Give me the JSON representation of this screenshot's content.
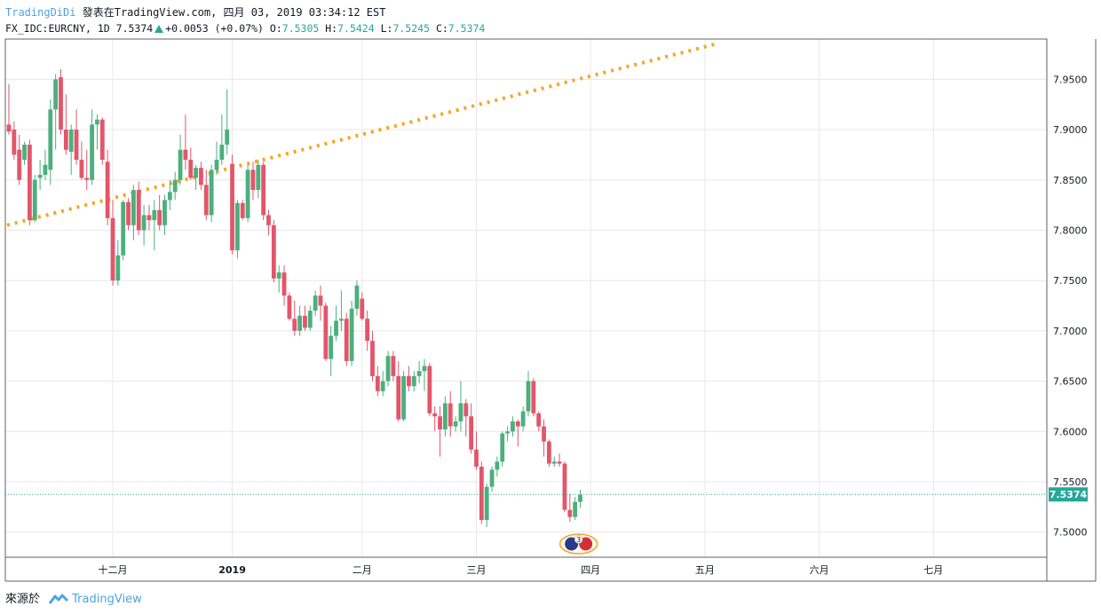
{
  "header": {
    "author": "TradingDiDi",
    "published": "發表在TradingView.com, 四月 03, 2019 03:34:12 EST"
  },
  "ticker": {
    "symbol": "FX_IDC:EURCNY, 1D",
    "last": "7.5374",
    "change": "+0.0053 (+0.07%)",
    "o_label": "O:",
    "o_value": "7.5305",
    "h_label": "H:",
    "h_value": "7.5424",
    "l_label": "L:",
    "l_value": "7.5245",
    "c_label": "C:",
    "c_value": "7.5374"
  },
  "footer": {
    "source_label": "來源於",
    "brand": "TradingView"
  },
  "colors": {
    "up": "#4caf7d",
    "down": "#e2566a",
    "trendline": "#f5a623",
    "grid": "#e8e8e8",
    "price_label_bg": "#26a69a",
    "author": "#4fa3e0"
  },
  "icons": [
    "trendline",
    "earnings-marker-icon",
    "tradingview-logo-icon",
    "up-triangle-icon"
  ],
  "chart_data": {
    "type": "candlestick",
    "title": "",
    "xlabel": "",
    "ylabel": "",
    "ylim": [
      7.475,
      7.99
    ],
    "grid": true,
    "y_ticks": [
      "7.5000",
      "7.5500",
      "7.6000",
      "7.6500",
      "7.7000",
      "7.7500",
      "7.8000",
      "7.8500",
      "7.9000",
      "7.9500"
    ],
    "x_ticks": [
      "十二月",
      "2019",
      "二月",
      "三月",
      "四月",
      "五月",
      "六月",
      "七月"
    ],
    "last_price_label": "7.5374",
    "event_marker_label": "3",
    "trendline": {
      "start": 7.805,
      "end": 7.985
    },
    "candles": [
      [
        7.905,
        7.945,
        7.895,
        7.898
      ],
      [
        7.9,
        7.908,
        7.87,
        7.875
      ],
      [
        7.88,
        7.895,
        7.845,
        7.85
      ],
      [
        7.87,
        7.888,
        7.865,
        7.885
      ],
      [
        7.885,
        7.89,
        7.805,
        7.81
      ],
      [
        7.81,
        7.855,
        7.808,
        7.85
      ],
      [
        7.852,
        7.87,
        7.84,
        7.855
      ],
      [
        7.855,
        7.88,
        7.85,
        7.865
      ],
      [
        7.86,
        7.93,
        7.845,
        7.92
      ],
      [
        7.92,
        7.955,
        7.88,
        7.95
      ],
      [
        7.952,
        7.96,
        7.895,
        7.9
      ],
      [
        7.9,
        7.935,
        7.875,
        7.88
      ],
      [
        7.878,
        7.905,
        7.855,
        7.9
      ],
      [
        7.9,
        7.92,
        7.865,
        7.87
      ],
      [
        7.87,
        7.888,
        7.85,
        7.852
      ],
      [
        7.852,
        7.88,
        7.84,
        7.85
      ],
      [
        7.85,
        7.92,
        7.845,
        7.905
      ],
      [
        7.905,
        7.915,
        7.88,
        7.91
      ],
      [
        7.91,
        7.912,
        7.865,
        7.87
      ],
      [
        7.868,
        7.88,
        7.805,
        7.812
      ],
      [
        7.812,
        7.83,
        7.745,
        7.75
      ],
      [
        7.75,
        7.79,
        7.745,
        7.775
      ],
      [
        7.775,
        7.83,
        7.77,
        7.828
      ],
      [
        7.828,
        7.832,
        7.8,
        7.805
      ],
      [
        7.805,
        7.845,
        7.79,
        7.84
      ],
      [
        7.84,
        7.848,
        7.795,
        7.8
      ],
      [
        7.8,
        7.825,
        7.785,
        7.815
      ],
      [
        7.815,
        7.825,
        7.8,
        7.81
      ],
      [
        7.81,
        7.83,
        7.78,
        7.82
      ],
      [
        7.82,
        7.835,
        7.8,
        7.805
      ],
      [
        7.805,
        7.835,
        7.795,
        7.83
      ],
      [
        7.83,
        7.85,
        7.82,
        7.838
      ],
      [
        7.838,
        7.858,
        7.83,
        7.85
      ],
      [
        7.85,
        7.895,
        7.845,
        7.88
      ],
      [
        7.88,
        7.915,
        7.86,
        7.87
      ],
      [
        7.87,
        7.882,
        7.85,
        7.852
      ],
      [
        7.852,
        7.865,
        7.84,
        7.862
      ],
      [
        7.862,
        7.868,
        7.84,
        7.845
      ],
      [
        7.845,
        7.86,
        7.81,
        7.815
      ],
      [
        7.815,
        7.865,
        7.808,
        7.86
      ],
      [
        7.86,
        7.888,
        7.855,
        7.87
      ],
      [
        7.87,
        7.915,
        7.865,
        7.885
      ],
      [
        7.885,
        7.94,
        7.875,
        7.9
      ],
      [
        7.866,
        7.875,
        7.776,
        7.78
      ],
      [
        7.78,
        7.83,
        7.772,
        7.827
      ],
      [
        7.827,
        7.83,
        7.81,
        7.812
      ],
      [
        7.812,
        7.865,
        7.808,
        7.86
      ],
      [
        7.86,
        7.868,
        7.83,
        7.84
      ],
      [
        7.84,
        7.87,
        7.832,
        7.865
      ],
      [
        7.865,
        7.868,
        7.81,
        7.815
      ],
      [
        7.815,
        7.82,
        7.795,
        7.805
      ],
      [
        7.805,
        7.81,
        7.748,
        7.752
      ],
      [
        7.752,
        7.765,
        7.738,
        7.758
      ],
      [
        7.758,
        7.765,
        7.725,
        7.735
      ],
      [
        7.735,
        7.738,
        7.71,
        7.712
      ],
      [
        7.712,
        7.73,
        7.695,
        7.7
      ],
      [
        7.7,
        7.725,
        7.695,
        7.715
      ],
      [
        7.715,
        7.725,
        7.7,
        7.703
      ],
      [
        7.703,
        7.725,
        7.7,
        7.72
      ],
      [
        7.72,
        7.74,
        7.715,
        7.735
      ],
      [
        7.735,
        7.745,
        7.71,
        7.725
      ],
      [
        7.725,
        7.728,
        7.67,
        7.672
      ],
      [
        7.672,
        7.705,
        7.655,
        7.695
      ],
      [
        7.695,
        7.725,
        7.69,
        7.71
      ],
      [
        7.71,
        7.74,
        7.7,
        7.712
      ],
      [
        7.712,
        7.718,
        7.665,
        7.67
      ],
      [
        7.67,
        7.73,
        7.665,
        7.722
      ],
      [
        7.722,
        7.75,
        7.715,
        7.745
      ],
      [
        7.732,
        7.738,
        7.71,
        7.712
      ],
      [
        7.712,
        7.72,
        7.68,
        7.69
      ],
      [
        7.69,
        7.7,
        7.65,
        7.655
      ],
      [
        7.655,
        7.665,
        7.635,
        7.64
      ],
      [
        7.64,
        7.66,
        7.635,
        7.65
      ],
      [
        7.65,
        7.68,
        7.645,
        7.675
      ],
      [
        7.675,
        7.68,
        7.65,
        7.655
      ],
      [
        7.655,
        7.67,
        7.61,
        7.612
      ],
      [
        7.612,
        7.66,
        7.61,
        7.655
      ],
      [
        7.655,
        7.665,
        7.64,
        7.645
      ],
      [
        7.645,
        7.66,
        7.64,
        7.655
      ],
      [
        7.655,
        7.67,
        7.648,
        7.66
      ],
      [
        7.66,
        7.672,
        7.64,
        7.665
      ],
      [
        7.665,
        7.668,
        7.615,
        7.618
      ],
      [
        7.618,
        7.625,
        7.6,
        7.615
      ],
      [
        7.615,
        7.625,
        7.575,
        7.602
      ],
      [
        7.602,
        7.635,
        7.595,
        7.628
      ],
      [
        7.628,
        7.64,
        7.595,
        7.605
      ],
      [
        7.605,
        7.615,
        7.6,
        7.61
      ],
      [
        7.61,
        7.65,
        7.6,
        7.628
      ],
      [
        7.628,
        7.632,
        7.595,
        7.615
      ],
      [
        7.615,
        7.628,
        7.578,
        7.582
      ],
      [
        7.582,
        7.6,
        7.562,
        7.565
      ],
      [
        7.565,
        7.57,
        7.508,
        7.512
      ],
      [
        7.512,
        7.548,
        7.505,
        7.545
      ],
      [
        7.545,
        7.565,
        7.54,
        7.562
      ],
      [
        7.562,
        7.575,
        7.555,
        7.57
      ],
      [
        7.57,
        7.6,
        7.565,
        7.598
      ],
      [
        7.598,
        7.605,
        7.59,
        7.6
      ],
      [
        7.6,
        7.615,
        7.595,
        7.61
      ],
      [
        7.61,
        7.612,
        7.585,
        7.605
      ],
      [
        7.605,
        7.625,
        7.6,
        7.62
      ],
      [
        7.62,
        7.66,
        7.615,
        7.65
      ],
      [
        7.65,
        7.653,
        7.615,
        7.618
      ],
      [
        7.618,
        7.62,
        7.6,
        7.605
      ],
      [
        7.605,
        7.612,
        7.575,
        7.59
      ],
      [
        7.59,
        7.592,
        7.565,
        7.568
      ],
      [
        7.568,
        7.575,
        7.565,
        7.57
      ],
      [
        7.57,
        7.578,
        7.565,
        7.568
      ],
      [
        7.568,
        7.57,
        7.52,
        7.522
      ],
      [
        7.522,
        7.538,
        7.51,
        7.515
      ],
      [
        7.515,
        7.535,
        7.512,
        7.53
      ],
      [
        7.53,
        7.542,
        7.524,
        7.537
      ]
    ]
  }
}
